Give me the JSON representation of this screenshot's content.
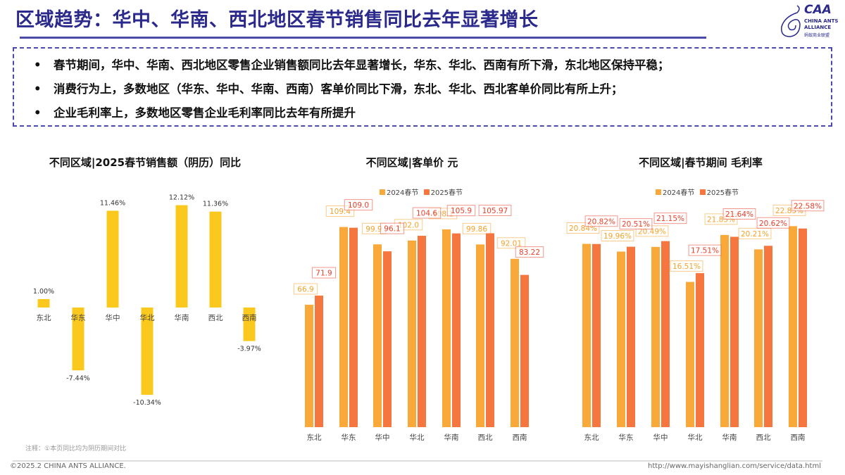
{
  "header": {
    "title": "区域趋势：华中、华南、西北地区春节销售同比去年显著增长"
  },
  "logo": {
    "brand": "CAA",
    "line1": "CHINA ANTS",
    "line2": "ALLIANCE",
    "line3": "蚂蚁商业联盟"
  },
  "summary": {
    "bullet_icon": "•",
    "items": [
      "春节期间，华中、华南、西北地区零售企业销售额同比去年显著增长，华东、华北、西南有所下滑，东北地区保持平稳；",
      "消费行为上，多数地区（华东、华中、华南、西南）客单价同比下滑，东北、华北、西北客单价同比有所上升；",
      "企业毛利率上，多数地区零售企业毛利率同比去年有所提升"
    ]
  },
  "colors": {
    "yoy": "#FBC91E",
    "s2024": "#F9A93A",
    "s2025": "#F5773F",
    "accent": "#2b2a8c"
  },
  "chart_data": [
    {
      "type": "bar",
      "title": "不同区域|2025春节销售额（阴历）同比",
      "categories": [
        "东北",
        "华东",
        "华中",
        "华北",
        "华南",
        "西北",
        "西南"
      ],
      "values": [
        1.0,
        -7.44,
        11.46,
        -10.34,
        12.12,
        11.36,
        -3.97
      ],
      "labels": [
        "1.00%",
        "-7.44%",
        "11.46%",
        "-10.34%",
        "12.12%",
        "11.36%",
        "-3.97%"
      ],
      "unit": "%",
      "grid": false
    },
    {
      "type": "bar",
      "title": "不同区域|客单价 元",
      "categories": [
        "东北",
        "华东",
        "华中",
        "华北",
        "华南",
        "西北",
        "西南"
      ],
      "series": [
        {
          "name": "2024春节",
          "values": [
            66.9,
            109.4,
            99.9,
            102.0,
            108.1,
            99.86,
            92.01
          ],
          "labels": [
            "66.9",
            "109.4",
            "99.9",
            "102.0",
            "108.1",
            "99.86",
            "92.01"
          ]
        },
        {
          "name": "2025春节",
          "values": [
            71.9,
            109.0,
            96.1,
            104.6,
            105.9,
            105.97,
            83.22
          ],
          "labels": [
            "71.9",
            "109.0",
            "96.1",
            "104.6",
            "105.9",
            "105.97",
            "83.22"
          ]
        }
      ],
      "legend": "top",
      "grid": false
    },
    {
      "type": "bar",
      "title": "不同区域|春节期间 毛利率",
      "categories": [
        "东北",
        "华东",
        "华中",
        "华北",
        "华南",
        "西北",
        "西南"
      ],
      "series": [
        {
          "name": "2024春节",
          "values": [
            20.84,
            19.96,
            20.49,
            16.51,
            21.85,
            20.21,
            22.85
          ],
          "labels": [
            "20.84%",
            "19.96%",
            "20.49%",
            "16.51%",
            "21.85%",
            "20.21%",
            "22.85%"
          ]
        },
        {
          "name": "2025春节",
          "values": [
            20.82,
            20.51,
            21.15,
            17.51,
            21.64,
            20.62,
            22.58
          ],
          "labels": [
            "20.82%",
            "20.51%",
            "21.15%",
            "17.51%",
            "21.64%",
            "20.62%",
            "22.58%"
          ]
        }
      ],
      "legend": "top",
      "unit": "%",
      "grid": false
    }
  ],
  "note": "注释：①本页同比均为阴历期间对比",
  "footer": {
    "copyright": "©2025.2 CHINA ANTS ALLIANCE.",
    "url": "http://www.mayishanglian.com/service/data.html"
  }
}
